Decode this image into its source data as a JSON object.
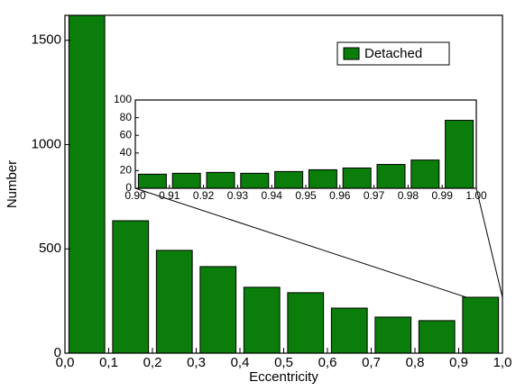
{
  "chart_data": [
    {
      "type": "histogram",
      "xlabel": "Eccentricity",
      "ylabel": "Number",
      "bins": [
        0,
        0.1,
        0.2,
        0.3,
        0.4,
        0.5,
        0.6,
        0.7,
        0.8,
        0.9,
        1.0
      ],
      "series": [
        {
          "name": "Detached",
          "color": "#0a7d0a",
          "values": [
            1650,
            635,
            493,
            415,
            316,
            290,
            216,
            173,
            156,
            268
          ]
        }
      ],
      "xlim": [
        0,
        1.0
      ],
      "ylim": [
        0,
        1620
      ],
      "xticks": [
        {
          "value": 0,
          "label": "0,0"
        },
        {
          "value": 0.1,
          "label": "0,1"
        },
        {
          "value": 0.2,
          "label": "0,2"
        },
        {
          "value": 0.3,
          "label": "0,3"
        },
        {
          "value": 0.4,
          "label": "0,4"
        },
        {
          "value": 0.5,
          "label": "0,5"
        },
        {
          "value": 0.6,
          "label": "0,6"
        },
        {
          "value": 0.7,
          "label": "0,7"
        },
        {
          "value": 0.8,
          "label": "0,8"
        },
        {
          "value": 0.9,
          "label": "0,9"
        },
        {
          "value": 1.0,
          "label": "1,0"
        }
      ],
      "yticks": [
        0,
        500,
        1000,
        1500
      ],
      "legend": "upper right"
    },
    {
      "type": "histogram",
      "bins": [
        0.9,
        0.91,
        0.92,
        0.93,
        0.94,
        0.95,
        0.96,
        0.97,
        0.98,
        0.99,
        1.0
      ],
      "series": [
        {
          "color": "#0a7d0a",
          "values": [
            16,
            17,
            18,
            17,
            19,
            21,
            23,
            27,
            32,
            77
          ]
        }
      ],
      "xlim": [
        0.9,
        1.0
      ],
      "ylim": [
        0,
        100
      ],
      "xticks": [
        {
          "value": 0.9,
          "label": "0.90"
        },
        {
          "value": 0.91,
          "label": "0.91"
        },
        {
          "value": 0.92,
          "label": "0.92"
        },
        {
          "value": 0.93,
          "label": "0.93"
        },
        {
          "value": 0.94,
          "label": "0.94"
        },
        {
          "value": 0.95,
          "label": "0.95"
        },
        {
          "value": 0.96,
          "label": "0.96"
        },
        {
          "value": 0.97,
          "label": "0.97"
        },
        {
          "value": 0.98,
          "label": "0.98"
        },
        {
          "value": 0.99,
          "label": "0.99"
        },
        {
          "value": 1.0,
          "label": "1.00"
        }
      ],
      "yticks": [
        0,
        20,
        40,
        60,
        80,
        100
      ]
    }
  ]
}
